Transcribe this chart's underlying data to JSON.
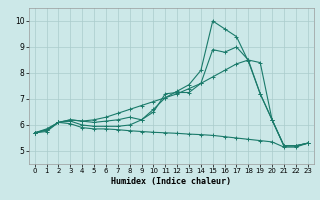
{
  "xlabel": "Humidex (Indice chaleur)",
  "xlim": [
    -0.5,
    23.5
  ],
  "ylim": [
    4.5,
    10.5
  ],
  "xticks": [
    0,
    1,
    2,
    3,
    4,
    5,
    6,
    7,
    8,
    9,
    10,
    11,
    12,
    13,
    14,
    15,
    16,
    17,
    18,
    19,
    20,
    21,
    22,
    23
  ],
  "yticks": [
    5,
    6,
    7,
    8,
    9,
    10
  ],
  "background_color": "#cce8e8",
  "grid_color": "#aacccc",
  "line_color": "#1a7a6a",
  "line1_x": [
    0,
    1,
    2,
    3,
    4,
    5,
    6,
    7,
    8,
    9,
    10,
    11,
    12,
    13,
    14,
    15,
    16,
    17,
    18,
    19,
    20,
    21,
    22,
    23
  ],
  "line1_y": [
    5.7,
    5.75,
    6.1,
    6.05,
    5.9,
    5.85,
    5.85,
    5.82,
    5.78,
    5.75,
    5.72,
    5.7,
    5.68,
    5.65,
    5.63,
    5.6,
    5.55,
    5.5,
    5.45,
    5.4,
    5.35,
    5.15,
    5.15,
    5.3
  ],
  "line2_x": [
    0,
    1,
    2,
    3,
    4,
    5,
    6,
    7,
    8,
    9,
    10,
    11,
    12,
    13,
    14,
    15,
    16,
    17,
    18,
    19,
    20,
    21,
    22,
    23
  ],
  "line2_y": [
    5.7,
    5.8,
    6.1,
    6.15,
    6.0,
    5.95,
    5.95,
    5.95,
    6.0,
    6.2,
    6.5,
    7.2,
    7.25,
    7.25,
    7.6,
    8.9,
    8.8,
    9.0,
    8.5,
    7.2,
    6.2,
    5.2,
    5.2,
    5.3
  ],
  "line3_x": [
    0,
    1,
    2,
    3,
    4,
    5,
    6,
    7,
    8,
    9,
    10,
    11,
    12,
    13,
    14,
    15,
    16,
    17,
    18,
    19,
    20,
    21,
    22,
    23
  ],
  "line3_y": [
    5.7,
    5.85,
    6.1,
    6.2,
    6.15,
    6.1,
    6.15,
    6.2,
    6.3,
    6.2,
    6.6,
    7.05,
    7.3,
    7.55,
    8.1,
    10.0,
    9.7,
    9.4,
    8.45,
    7.2,
    6.2,
    5.2,
    5.2,
    5.3
  ],
  "line4_x": [
    0,
    1,
    2,
    3,
    4,
    5,
    6,
    7,
    8,
    9,
    10,
    11,
    12,
    13,
    14,
    15,
    16,
    17,
    18,
    19,
    20,
    21,
    22,
    23
  ],
  "line4_y": [
    5.7,
    5.82,
    6.1,
    6.2,
    6.15,
    6.2,
    6.3,
    6.45,
    6.6,
    6.75,
    6.9,
    7.05,
    7.2,
    7.4,
    7.6,
    7.85,
    8.1,
    8.35,
    8.5,
    8.4,
    6.2,
    5.2,
    5.2,
    5.3
  ]
}
